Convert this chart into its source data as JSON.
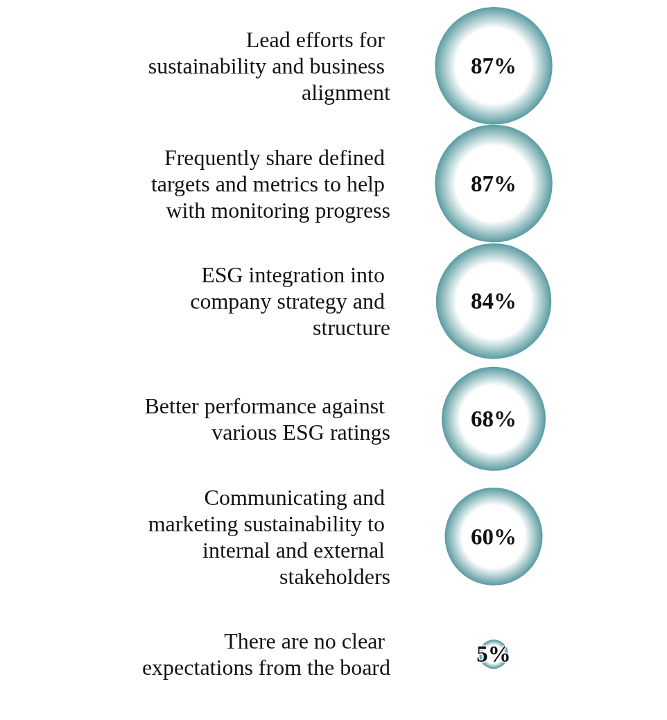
{
  "chart_data": {
    "type": "other",
    "categories": [
      "Lead efforts for sustainability and business alignment",
      "Frequently share defined targets and metrics to help with monitoring progress",
      "ESG integration into company strategy and structure",
      "Better performance against various ESG ratings",
      "Communicating and marketing sustainability to internal and external stakeholders",
      "There are no clear expectations from the board"
    ],
    "values": [
      87,
      87,
      84,
      68,
      60,
      5
    ],
    "value_labels": [
      "87%",
      "87%",
      "84%",
      "68%",
      "60%",
      "5%"
    ],
    "color": "#5f9ea3"
  }
}
